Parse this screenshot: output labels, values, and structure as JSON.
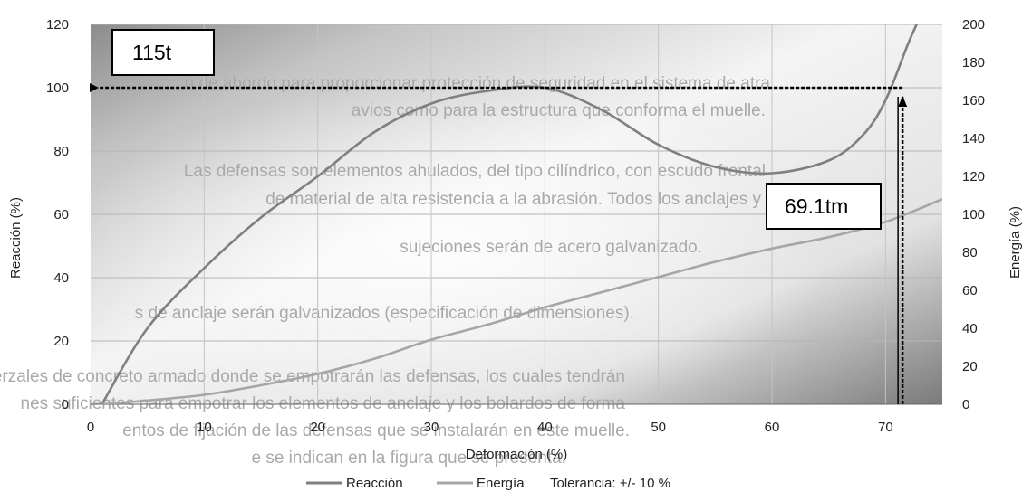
{
  "chart_data": {
    "type": "line",
    "xlabel": "Deformación (%)",
    "ylabel": "Reacción (%)",
    "y2label": "Energía (%)",
    "xlim": [
      0,
      75
    ],
    "ylim": [
      0,
      120
    ],
    "y2lim": [
      0,
      200
    ],
    "x_ticks": [
      0,
      10,
      20,
      30,
      40,
      50,
      60,
      70
    ],
    "y_ticks": [
      0,
      20,
      40,
      60,
      80,
      100,
      120
    ],
    "y2_ticks": [
      0,
      20,
      40,
      60,
      80,
      100,
      120,
      140,
      160,
      180,
      200
    ],
    "grid": true,
    "legend_position": "bottom",
    "series": [
      {
        "name": "Reacción",
        "axis": "left",
        "color": "#7f7f7f",
        "x": [
          1,
          5,
          10,
          15,
          20,
          25,
          30,
          35,
          40,
          45,
          50,
          55,
          60,
          65,
          68,
          70,
          72,
          73
        ],
        "y": [
          0,
          24,
          43,
          59,
          72,
          86,
          95,
          99,
          100,
          93,
          82,
          75,
          73,
          77,
          85,
          96,
          114,
          122
        ]
      },
      {
        "name": "Energía",
        "axis": "right",
        "color": "#a6a6a6",
        "x": [
          1,
          5,
          10,
          15,
          20,
          25,
          30,
          35,
          40,
          45,
          50,
          55,
          60,
          65,
          70,
          75
        ],
        "y": [
          0,
          2,
          5,
          10,
          16,
          24,
          34,
          42,
          51,
          59,
          67,
          75,
          82,
          88,
          96,
          108
        ]
      }
    ],
    "annotations": [
      {
        "text": "115t",
        "target_x": 71.5,
        "target_y": 100
      },
      {
        "text": "69.1tm",
        "target_x": 71.5,
        "target_y2": 100
      }
    ],
    "legend_extra": "Tolerancia: +/- 10 %"
  },
  "background_text": [
    "n de abordo para proporcionar protección de seguridad en el sistema de atra",
    "avios como para la estructura que conforma el muelle.",
    "Las defensas son elementos ahulados, del tipo cilíndrico, con escudo frontal",
    "de material de alta resistencia a la abrasión. Todos los anclajes y",
    "sujeciones serán de acero galvanizado.",
    "s de anclaje serán galvanizados (especificación de dimensiones).",
    "erzales de concreto armado donde se empotrarán las defensas, los cuales tendrán",
    "nes suficientes para empotrar los elementos de anclaje y los bolardos de forma",
    "entos de fijación de las defensas que se instalarán en este muelle.",
    "e se indican en la figura que se presenta."
  ]
}
